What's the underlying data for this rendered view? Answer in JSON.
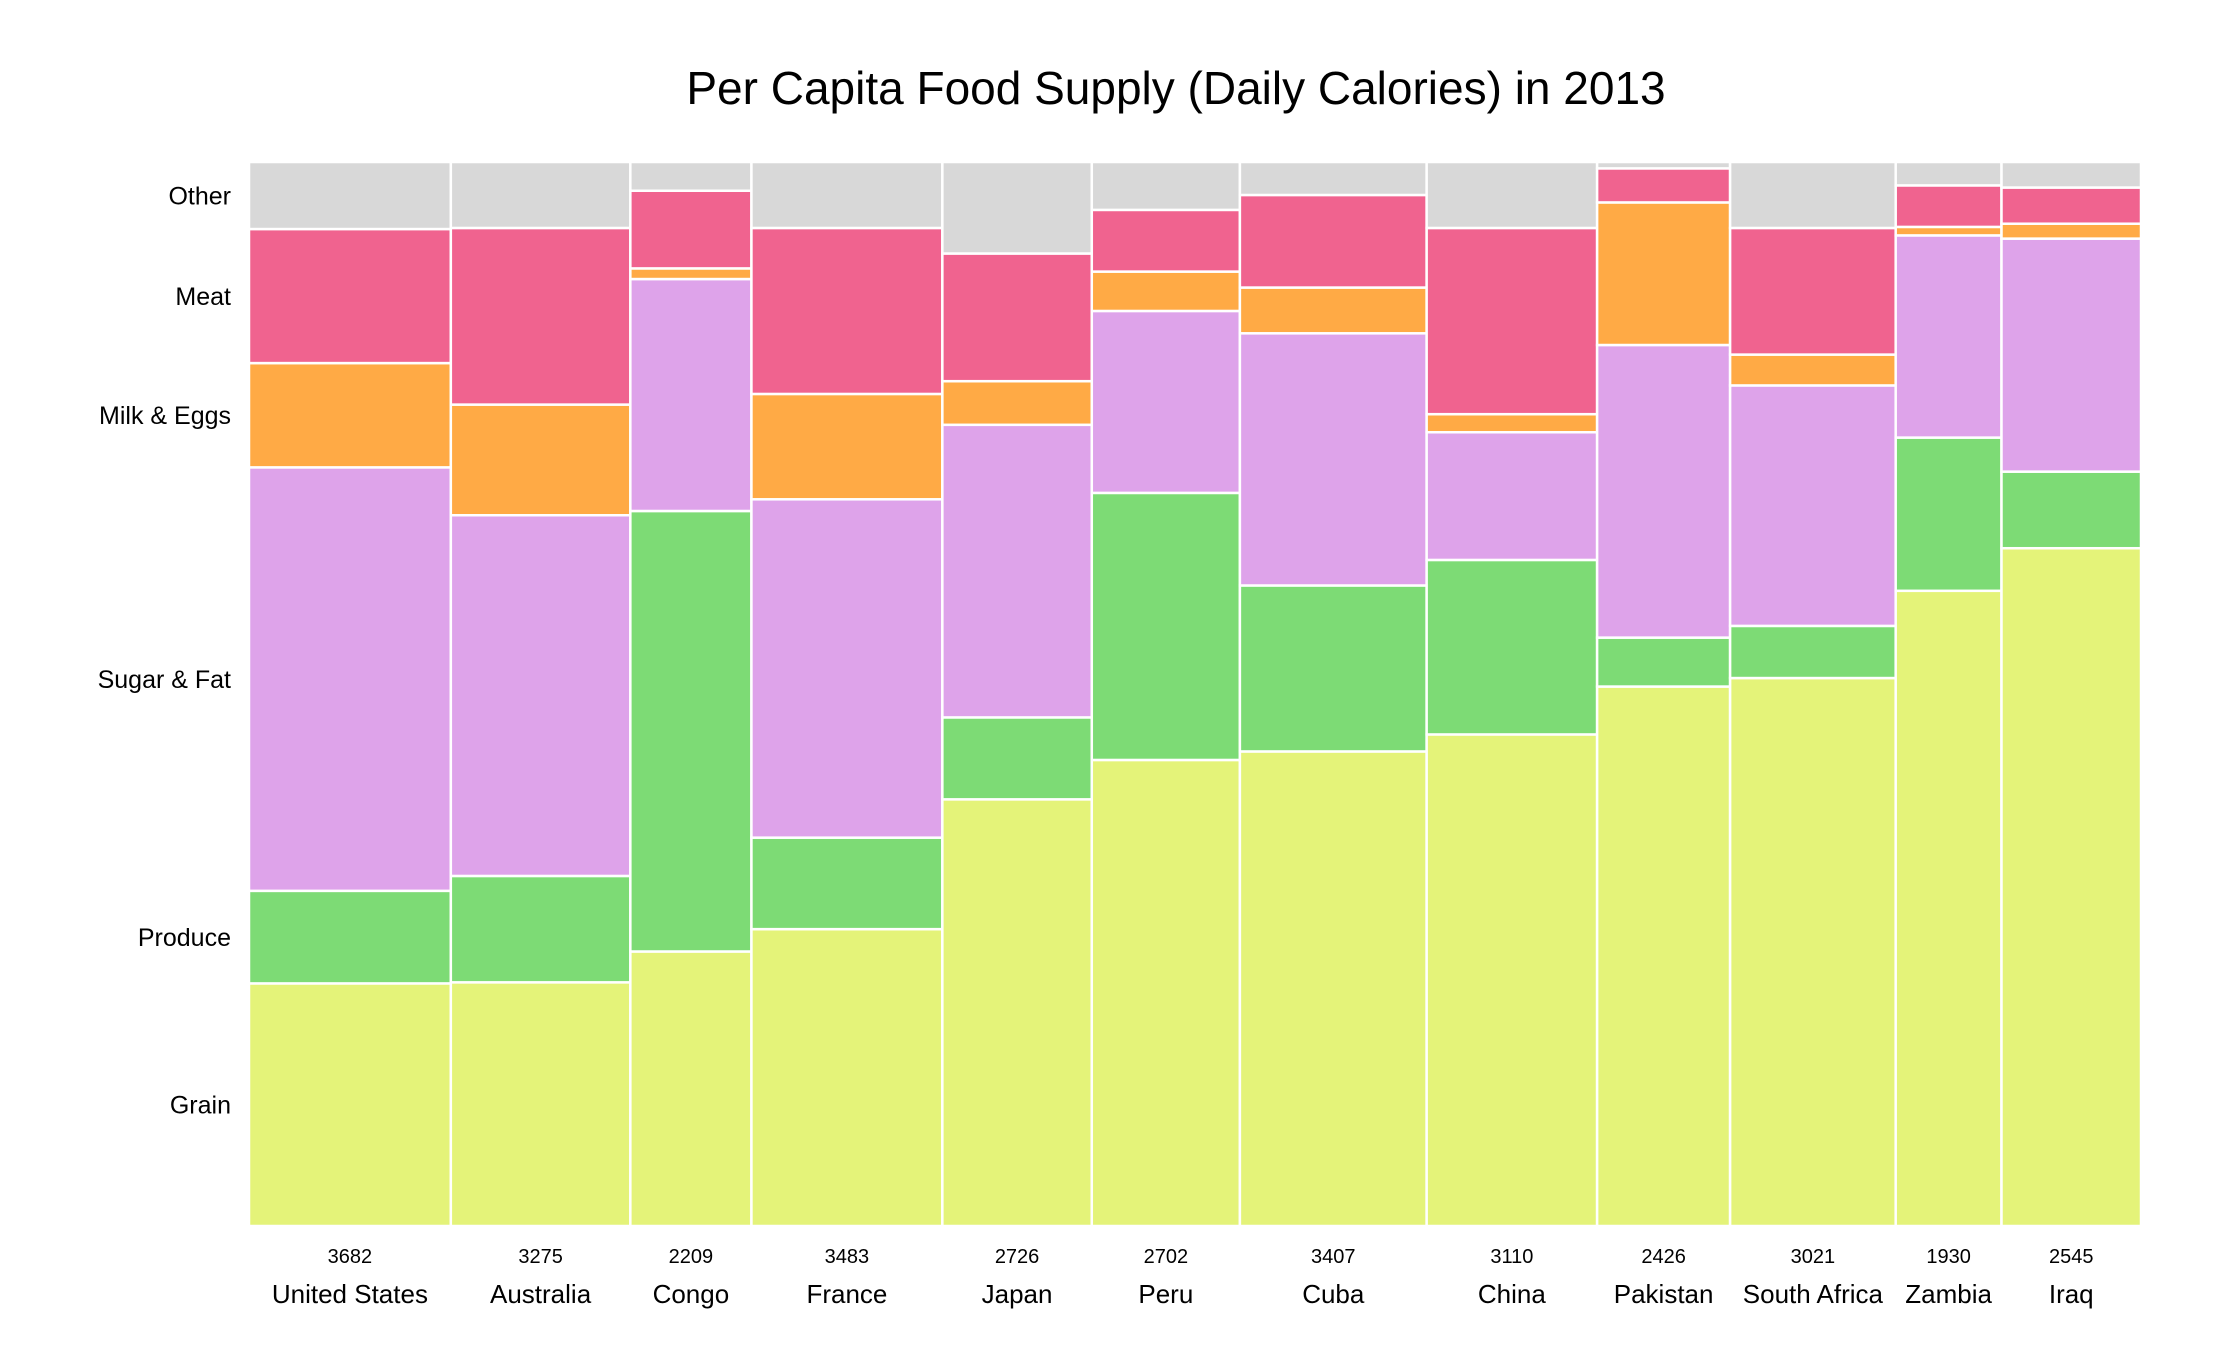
{
  "chart_data": {
    "type": "bar",
    "subtype": "marimekko",
    "title": "Per Capita Food Supply (Daily Calories) in 2013",
    "xlabel": "",
    "ylabel": "",
    "ylim": [
      0,
      1
    ],
    "grid": false,
    "legend": "none",
    "categories": [
      "United States",
      "Australia",
      "Congo",
      "France",
      "Japan",
      "Peru",
      "Cuba",
      "China",
      "Pakistan",
      "South Africa",
      "Zambia",
      "Iraq"
    ],
    "totals": [
      3682,
      3275,
      2209,
      3483,
      2726,
      2702,
      3407,
      3110,
      2426,
      3021,
      1930,
      2545
    ],
    "series": [
      {
        "name": "Grain",
        "color": "#e4f379",
        "values": [
          0.228,
          0.229,
          0.258,
          0.279,
          0.401,
          0.438,
          0.446,
          0.462,
          0.507,
          0.515,
          0.597,
          0.637
        ]
      },
      {
        "name": "Produce",
        "color": "#7ddb75",
        "values": [
          0.087,
          0.1,
          0.414,
          0.086,
          0.077,
          0.251,
          0.156,
          0.164,
          0.046,
          0.049,
          0.144,
          0.072
        ]
      },
      {
        "name": "Sugar & Fat",
        "color": "#dea3ea",
        "values": [
          0.398,
          0.339,
          0.218,
          0.318,
          0.275,
          0.171,
          0.237,
          0.12,
          0.275,
          0.226,
          0.19,
          0.219
        ]
      },
      {
        "name": "Milk & Eggs",
        "color": "#ffaa45",
        "values": [
          0.098,
          0.104,
          0.01,
          0.099,
          0.041,
          0.037,
          0.043,
          0.017,
          0.134,
          0.029,
          0.008,
          0.014
        ]
      },
      {
        "name": "Meat",
        "color": "#f0638f",
        "values": [
          0.126,
          0.166,
          0.073,
          0.156,
          0.12,
          0.058,
          0.087,
          0.175,
          0.032,
          0.119,
          0.039,
          0.034
        ]
      },
      {
        "name": "Other",
        "color": "#d8d8d8",
        "values": [
          0.063,
          0.062,
          0.027,
          0.062,
          0.086,
          0.045,
          0.031,
          0.062,
          0.006,
          0.062,
          0.022,
          0.024
        ]
      }
    ]
  }
}
